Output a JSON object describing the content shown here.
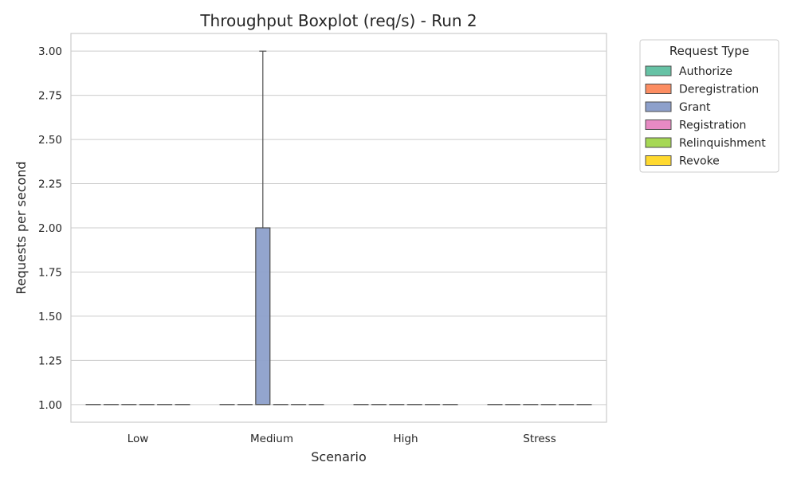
{
  "chart_data": {
    "type": "boxplot",
    "title": "Throughput Boxplot (req/s) - Run 2",
    "xlabel": "Scenario",
    "ylabel": "Requests per second",
    "categories": [
      "Low",
      "Medium",
      "High",
      "Stress"
    ],
    "ylim": [
      0.9,
      3.1
    ],
    "yticks": [
      "1.00",
      "1.25",
      "1.50",
      "1.75",
      "2.00",
      "2.25",
      "2.50",
      "2.75",
      "3.00"
    ],
    "grid": true,
    "legend": {
      "title": "Request Type",
      "placement": "outside-top-right"
    },
    "series": [
      {
        "name": "Authorize",
        "color": "#66c2a5",
        "boxes": [
          {
            "min": 1,
            "q1": 1,
            "median": 1,
            "q3": 1,
            "max": 1
          },
          {
            "min": 1,
            "q1": 1,
            "median": 1,
            "q3": 1,
            "max": 1
          },
          {
            "min": 1,
            "q1": 1,
            "median": 1,
            "q3": 1,
            "max": 1
          },
          {
            "min": 1,
            "q1": 1,
            "median": 1,
            "q3": 1,
            "max": 1
          }
        ]
      },
      {
        "name": "Deregistration",
        "color": "#fc8d62",
        "boxes": [
          {
            "min": 1,
            "q1": 1,
            "median": 1,
            "q3": 1,
            "max": 1
          },
          {
            "min": 1,
            "q1": 1,
            "median": 1,
            "q3": 1,
            "max": 1
          },
          {
            "min": 1,
            "q1": 1,
            "median": 1,
            "q3": 1,
            "max": 1
          },
          {
            "min": 1,
            "q1": 1,
            "median": 1,
            "q3": 1,
            "max": 1
          }
        ]
      },
      {
        "name": "Grant",
        "color": "#8da0cb",
        "boxes": [
          {
            "min": 1,
            "q1": 1,
            "median": 1,
            "q3": 1,
            "max": 1
          },
          {
            "min": 1,
            "q1": 1,
            "median": 1,
            "q3": 2,
            "max": 3
          },
          {
            "min": 1,
            "q1": 1,
            "median": 1,
            "q3": 1,
            "max": 1
          },
          {
            "min": 1,
            "q1": 1,
            "median": 1,
            "q3": 1,
            "max": 1
          }
        ]
      },
      {
        "name": "Registration",
        "color": "#e78ac3",
        "boxes": [
          {
            "min": 1,
            "q1": 1,
            "median": 1,
            "q3": 1,
            "max": 1
          },
          {
            "min": 1,
            "q1": 1,
            "median": 1,
            "q3": 1,
            "max": 1
          },
          {
            "min": 1,
            "q1": 1,
            "median": 1,
            "q3": 1,
            "max": 1
          },
          {
            "min": 1,
            "q1": 1,
            "median": 1,
            "q3": 1,
            "max": 1
          }
        ]
      },
      {
        "name": "Relinquishment",
        "color": "#a6d854",
        "boxes": [
          {
            "min": 1,
            "q1": 1,
            "median": 1,
            "q3": 1,
            "max": 1
          },
          {
            "min": 1,
            "q1": 1,
            "median": 1,
            "q3": 1,
            "max": 1
          },
          {
            "min": 1,
            "q1": 1,
            "median": 1,
            "q3": 1,
            "max": 1
          },
          {
            "min": 1,
            "q1": 1,
            "median": 1,
            "q3": 1,
            "max": 1
          }
        ]
      },
      {
        "name": "Revoke",
        "color": "#ffd92f",
        "boxes": [
          {
            "min": 1,
            "q1": 1,
            "median": 1,
            "q3": 1,
            "max": 1
          },
          {
            "min": 1,
            "q1": 1,
            "median": 1,
            "q3": 1,
            "max": 1
          },
          {
            "min": 1,
            "q1": 1,
            "median": 1,
            "q3": 1,
            "max": 1
          },
          {
            "min": 1,
            "q1": 1,
            "median": 1,
            "q3": 1,
            "max": 1
          }
        ]
      }
    ]
  }
}
